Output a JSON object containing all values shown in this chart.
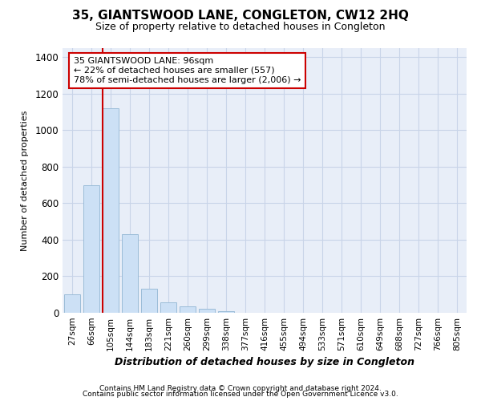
{
  "title": "35, GIANTSWOOD LANE, CONGLETON, CW12 2HQ",
  "subtitle": "Size of property relative to detached houses in Congleton",
  "xlabel": "Distribution of detached houses by size in Congleton",
  "ylabel": "Number of detached properties",
  "footer_line1": "Contains HM Land Registry data © Crown copyright and database right 2024.",
  "footer_line2": "Contains public sector information licensed under the Open Government Licence v3.0.",
  "bar_color": "#cce0f5",
  "bar_edge_color": "#9bbcd8",
  "grid_color": "#c8d4e8",
  "background_color": "#e8eef8",
  "annotation_box_color": "#cc0000",
  "property_line_color": "#cc0000",
  "categories": [
    "27sqm",
    "66sqm",
    "105sqm",
    "144sqm",
    "183sqm",
    "221sqm",
    "260sqm",
    "299sqm",
    "338sqm",
    "377sqm",
    "416sqm",
    "455sqm",
    "494sqm",
    "533sqm",
    "571sqm",
    "610sqm",
    "649sqm",
    "688sqm",
    "727sqm",
    "766sqm",
    "805sqm"
  ],
  "values": [
    100,
    700,
    1120,
    430,
    130,
    55,
    35,
    20,
    10,
    0,
    0,
    0,
    0,
    0,
    0,
    0,
    0,
    0,
    0,
    0,
    0
  ],
  "ylim": [
    0,
    1450
  ],
  "yticks": [
    0,
    200,
    400,
    600,
    800,
    1000,
    1200,
    1400
  ],
  "property_bar_index": 2,
  "annotation_text_line1": "35 GIANTSWOOD LANE: 96sqm",
  "annotation_text_line2": "← 22% of detached houses are smaller (557)",
  "annotation_text_line3": "78% of semi-detached houses are larger (2,006) →"
}
